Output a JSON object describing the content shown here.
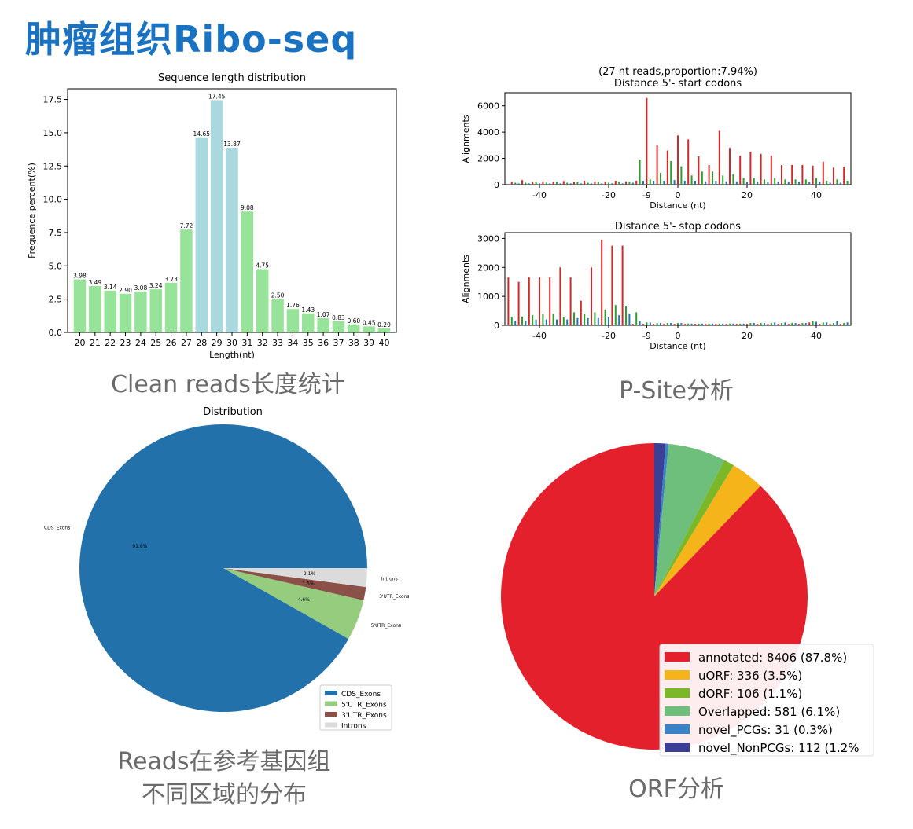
{
  "header": {
    "title": "肿瘤组织Ribo-seq"
  },
  "captions": {
    "length": "Clean reads长度统计",
    "psite": "P-Site分析",
    "region_line1": "Reads在参考基因组",
    "region_line2": "不同区域的分布",
    "orf": "ORF分析"
  },
  "chart_data": [
    {
      "type": "bar",
      "title": "Sequence length distribution",
      "xlabel": "Length(nt)",
      "ylabel": "Frequence percent(%)",
      "ylim": [
        0,
        18.3
      ],
      "yticks": [
        "0.0",
        "2.5",
        "5.0",
        "7.5",
        "10.0",
        "12.5",
        "15.0",
        "17.5"
      ],
      "categories": [
        "20",
        "21",
        "22",
        "23",
        "24",
        "25",
        "26",
        "27",
        "28",
        "29",
        "30",
        "31",
        "32",
        "33",
        "34",
        "35",
        "36",
        "37",
        "38",
        "39",
        "40"
      ],
      "values": [
        3.98,
        3.49,
        3.14,
        2.9,
        3.08,
        3.24,
        3.73,
        7.72,
        14.65,
        17.45,
        13.87,
        9.08,
        4.75,
        2.5,
        1.76,
        1.43,
        1.07,
        0.83,
        0.6,
        0.45,
        0.29
      ],
      "labels": [
        "3.98",
        "3.49",
        "3.14",
        "2.90",
        "3.08",
        "3.24",
        "3.73",
        "7.72",
        "14.65",
        "17.45",
        "13.87",
        "9.08",
        "4.75",
        "2.50",
        "1.76",
        "1.43",
        "1.07",
        "0.83",
        "0.60",
        "0.45",
        "0.29"
      ],
      "colors": {
        "normal": "#98e39a",
        "highlight": "#a9d8de"
      },
      "highlight_categories": [
        "28",
        "29",
        "30"
      ]
    },
    {
      "type": "bar",
      "title": "Distance 5'- start codons",
      "subtitle": "(27 nt reads,proportion:7.94%)",
      "xlabel": "Distance (nt)",
      "ylabel": "Alignments",
      "xlim": [
        -50,
        50
      ],
      "ylim": [
        0,
        7000
      ],
      "xticks": [
        -40,
        -20,
        -9,
        0,
        20,
        40
      ],
      "yticks": [
        0,
        2000,
        4000,
        6000
      ],
      "colors": [
        "#d62728",
        "#2ca02c",
        "#1f77b4"
      ],
      "frames": {
        "frame0": [
          {
            "x": -48,
            "y": 200
          },
          {
            "x": -45,
            "y": 350
          },
          {
            "x": -42,
            "y": 200
          },
          {
            "x": -39,
            "y": 250
          },
          {
            "x": -36,
            "y": 220
          },
          {
            "x": -33,
            "y": 280
          },
          {
            "x": -30,
            "y": 200
          },
          {
            "x": -27,
            "y": 300
          },
          {
            "x": -24,
            "y": 250
          },
          {
            "x": -21,
            "y": 200
          },
          {
            "x": -18,
            "y": 300
          },
          {
            "x": -15,
            "y": 250
          },
          {
            "x": -12,
            "y": 300
          },
          {
            "x": -9,
            "y": 6600
          },
          {
            "x": -6,
            "y": 3000
          },
          {
            "x": -3,
            "y": 2600
          },
          {
            "x": 0,
            "y": 3750
          },
          {
            "x": 3,
            "y": 3450
          },
          {
            "x": 6,
            "y": 2150
          },
          {
            "x": 9,
            "y": 1500
          },
          {
            "x": 12,
            "y": 4100
          },
          {
            "x": 15,
            "y": 2800
          },
          {
            "x": 18,
            "y": 2200
          },
          {
            "x": 21,
            "y": 2500
          },
          {
            "x": 24,
            "y": 2350
          },
          {
            "x": 27,
            "y": 2200
          },
          {
            "x": 30,
            "y": 1500
          },
          {
            "x": 33,
            "y": 1500
          },
          {
            "x": 36,
            "y": 1500
          },
          {
            "x": 39,
            "y": 1450
          },
          {
            "x": 42,
            "y": 1750
          },
          {
            "x": 45,
            "y": 1300
          },
          {
            "x": 48,
            "y": 1350
          }
        ],
        "frame1": [
          {
            "x": -47,
            "y": 150
          },
          {
            "x": -44,
            "y": 150
          },
          {
            "x": -41,
            "y": 200
          },
          {
            "x": -38,
            "y": 150
          },
          {
            "x": -35,
            "y": 200
          },
          {
            "x": -32,
            "y": 150
          },
          {
            "x": -29,
            "y": 200
          },
          {
            "x": -26,
            "y": 150
          },
          {
            "x": -23,
            "y": 200
          },
          {
            "x": -20,
            "y": 150
          },
          {
            "x": -17,
            "y": 200
          },
          {
            "x": -14,
            "y": 200
          },
          {
            "x": -11,
            "y": 1900
          },
          {
            "x": -8,
            "y": 400
          },
          {
            "x": -5,
            "y": 900
          },
          {
            "x": -2,
            "y": 1800
          },
          {
            "x": 1,
            "y": 1400
          },
          {
            "x": 4,
            "y": 700
          },
          {
            "x": 7,
            "y": 1000
          },
          {
            "x": 10,
            "y": 1000
          },
          {
            "x": 13,
            "y": 700
          },
          {
            "x": 16,
            "y": 800
          },
          {
            "x": 19,
            "y": 500
          },
          {
            "x": 22,
            "y": 500
          },
          {
            "x": 25,
            "y": 400
          },
          {
            "x": 28,
            "y": 500
          },
          {
            "x": 31,
            "y": 400
          },
          {
            "x": 34,
            "y": 400
          },
          {
            "x": 37,
            "y": 400
          },
          {
            "x": 40,
            "y": 500
          },
          {
            "x": 43,
            "y": 300
          },
          {
            "x": 46,
            "y": 400
          },
          {
            "x": 49,
            "y": 300
          }
        ],
        "frame2": [
          {
            "x": -46,
            "y": 100
          },
          {
            "x": -43,
            "y": 100
          },
          {
            "x": -40,
            "y": 100
          },
          {
            "x": -37,
            "y": 100
          },
          {
            "x": -34,
            "y": 100
          },
          {
            "x": -31,
            "y": 100
          },
          {
            "x": -28,
            "y": 100
          },
          {
            "x": -25,
            "y": 100
          },
          {
            "x": -22,
            "y": 100
          },
          {
            "x": -19,
            "y": 100
          },
          {
            "x": -16,
            "y": 100
          },
          {
            "x": -13,
            "y": 150
          },
          {
            "x": -10,
            "y": 300
          },
          {
            "x": -7,
            "y": 300
          },
          {
            "x": -4,
            "y": 300
          },
          {
            "x": -1,
            "y": 350
          },
          {
            "x": 2,
            "y": 300
          },
          {
            "x": 5,
            "y": 300
          },
          {
            "x": 8,
            "y": 250
          },
          {
            "x": 11,
            "y": 300
          },
          {
            "x": 14,
            "y": 250
          },
          {
            "x": 17,
            "y": 250
          },
          {
            "x": 20,
            "y": 200
          },
          {
            "x": 23,
            "y": 200
          },
          {
            "x": 26,
            "y": 200
          },
          {
            "x": 29,
            "y": 200
          },
          {
            "x": 32,
            "y": 200
          },
          {
            "x": 35,
            "y": 200
          },
          {
            "x": 38,
            "y": 200
          },
          {
            "x": 41,
            "y": 200
          },
          {
            "x": 44,
            "y": 150
          },
          {
            "x": 47,
            "y": 150
          }
        ]
      }
    },
    {
      "type": "bar",
      "title": "Distance 5'- stop codons",
      "xlabel": "Distance (nt)",
      "ylabel": "Alignments",
      "xlim": [
        -50,
        50
      ],
      "ylim": [
        0,
        3200
      ],
      "xticks": [
        -40,
        -20,
        -9,
        0,
        20,
        40
      ],
      "yticks": [
        0,
        1000,
        2000,
        3000
      ],
      "colors": [
        "#d62728",
        "#2ca02c",
        "#1f77b4"
      ],
      "frames": {
        "frame0": [
          {
            "x": -49,
            "y": 1650
          },
          {
            "x": -46,
            "y": 1500
          },
          {
            "x": -43,
            "y": 1650
          },
          {
            "x": -40,
            "y": 1650
          },
          {
            "x": -37,
            "y": 1650
          },
          {
            "x": -34,
            "y": 2000
          },
          {
            "x": -31,
            "y": 1650
          },
          {
            "x": -28,
            "y": 850
          },
          {
            "x": -25,
            "y": 2000
          },
          {
            "x": -22,
            "y": 2950
          },
          {
            "x": -19,
            "y": 2750
          },
          {
            "x": -16,
            "y": 2750
          },
          {
            "x": -13,
            "y": 50
          },
          {
            "x": -10,
            "y": 50
          },
          {
            "x": -7,
            "y": 50
          },
          {
            "x": -4,
            "y": 50
          },
          {
            "x": -1,
            "y": 50
          },
          {
            "x": 2,
            "y": 50
          },
          {
            "x": 5,
            "y": 50
          },
          {
            "x": 8,
            "y": 50
          },
          {
            "x": 11,
            "y": 50
          },
          {
            "x": 14,
            "y": 50
          },
          {
            "x": 17,
            "y": 50
          },
          {
            "x": 20,
            "y": 50
          },
          {
            "x": 23,
            "y": 50
          },
          {
            "x": 26,
            "y": 50
          },
          {
            "x": 29,
            "y": 50
          },
          {
            "x": 32,
            "y": 50
          },
          {
            "x": 35,
            "y": 50
          },
          {
            "x": 38,
            "y": 100
          },
          {
            "x": 41,
            "y": 50
          },
          {
            "x": 44,
            "y": 50
          },
          {
            "x": 47,
            "y": 50
          }
        ],
        "frame1": [
          {
            "x": -48,
            "y": 300
          },
          {
            "x": -45,
            "y": 300
          },
          {
            "x": -42,
            "y": 350
          },
          {
            "x": -39,
            "y": 400
          },
          {
            "x": -36,
            "y": 400
          },
          {
            "x": -33,
            "y": 300
          },
          {
            "x": -30,
            "y": 450
          },
          {
            "x": -27,
            "y": 400
          },
          {
            "x": -24,
            "y": 450
          },
          {
            "x": -21,
            "y": 550
          },
          {
            "x": -18,
            "y": 700
          },
          {
            "x": -15,
            "y": 650
          },
          {
            "x": -12,
            "y": 450
          },
          {
            "x": -9,
            "y": 100
          },
          {
            "x": -6,
            "y": 80
          },
          {
            "x": -3,
            "y": 80
          },
          {
            "x": 0,
            "y": 80
          },
          {
            "x": 3,
            "y": 60
          },
          {
            "x": 6,
            "y": 60
          },
          {
            "x": 9,
            "y": 60
          },
          {
            "x": 12,
            "y": 60
          },
          {
            "x": 15,
            "y": 60
          },
          {
            "x": 18,
            "y": 60
          },
          {
            "x": 21,
            "y": 80
          },
          {
            "x": 24,
            "y": 80
          },
          {
            "x": 27,
            "y": 80
          },
          {
            "x": 30,
            "y": 80
          },
          {
            "x": 33,
            "y": 80
          },
          {
            "x": 36,
            "y": 80
          },
          {
            "x": 39,
            "y": 150
          },
          {
            "x": 42,
            "y": 100
          },
          {
            "x": 45,
            "y": 80
          },
          {
            "x": 48,
            "y": 80
          }
        ],
        "frame2": [
          {
            "x": -47,
            "y": 150
          },
          {
            "x": -44,
            "y": 150
          },
          {
            "x": -41,
            "y": 200
          },
          {
            "x": -38,
            "y": 200
          },
          {
            "x": -35,
            "y": 200
          },
          {
            "x": -32,
            "y": 200
          },
          {
            "x": -29,
            "y": 250
          },
          {
            "x": -26,
            "y": 250
          },
          {
            "x": -23,
            "y": 250
          },
          {
            "x": -20,
            "y": 300
          },
          {
            "x": -17,
            "y": 350
          },
          {
            "x": -14,
            "y": 400
          },
          {
            "x": -11,
            "y": 150
          },
          {
            "x": -8,
            "y": 100
          },
          {
            "x": -5,
            "y": 80
          },
          {
            "x": -2,
            "y": 80
          },
          {
            "x": 1,
            "y": 80
          },
          {
            "x": 4,
            "y": 60
          },
          {
            "x": 7,
            "y": 60
          },
          {
            "x": 10,
            "y": 60
          },
          {
            "x": 13,
            "y": 60
          },
          {
            "x": 16,
            "y": 60
          },
          {
            "x": 19,
            "y": 60
          },
          {
            "x": 22,
            "y": 80
          },
          {
            "x": 25,
            "y": 80
          },
          {
            "x": 28,
            "y": 100
          },
          {
            "x": 31,
            "y": 100
          },
          {
            "x": 34,
            "y": 80
          },
          {
            "x": 37,
            "y": 80
          },
          {
            "x": 40,
            "y": 120
          },
          {
            "x": 43,
            "y": 100
          },
          {
            "x": 46,
            "y": 150
          },
          {
            "x": 49,
            "y": 100
          }
        ]
      }
    },
    {
      "type": "pie",
      "title": "Distribution",
      "slices": [
        {
          "label": "CDS_Exons",
          "value": 91.8,
          "pct_label": "91.8%",
          "color": "#2271aa"
        },
        {
          "label": "5'UTR_Exons",
          "value": 4.6,
          "pct_label": "4.6%",
          "color": "#95cc7e"
        },
        {
          "label": "3'UTR_Exons",
          "value": 1.5,
          "pct_label": "1.5%",
          "color": "#8b5048"
        },
        {
          "label": "Introns",
          "value": 2.1,
          "pct_label": "2.1%",
          "color": "#dbdbdb"
        }
      ],
      "legend_placement": "lower-right"
    },
    {
      "type": "pie",
      "slices": [
        {
          "label": "annotated",
          "value": 8406,
          "legend": "annotated: 8406 (87.8%)",
          "color": "#e5202d"
        },
        {
          "label": "uORF",
          "value": 336,
          "legend": "uORF: 336 (3.5%)",
          "color": "#f4b41a"
        },
        {
          "label": "dORF",
          "value": 106,
          "legend": "dORF: 106 (1.1%)",
          "color": "#7ab82a"
        },
        {
          "label": "Overlapped",
          "value": 581,
          "legend": "Overlapped: 581 (6.1%)",
          "color": "#6fbf7c"
        },
        {
          "label": "novel_PCGs",
          "value": 31,
          "legend": "novel_PCGs: 31 (0.3%)",
          "color": "#3b83c7"
        },
        {
          "label": "novel_NonPCGs",
          "value": 112,
          "legend": "novel_NonPCGs: 112 (1.2%",
          "color": "#3b3f95"
        }
      ],
      "legend_placement": "lower-right"
    }
  ]
}
